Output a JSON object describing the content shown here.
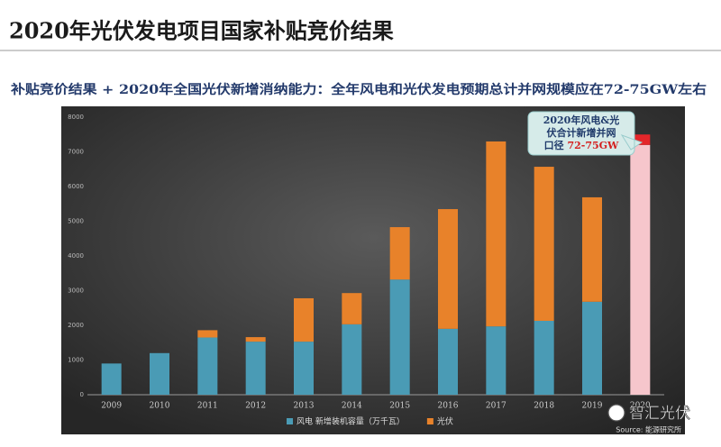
{
  "header": {
    "title": "2020年光伏发电项目国家补贴竞价结果",
    "subtitle": "补贴竞价结果 + 2020年全国光伏新增消纳能力：全年风电和光伏发电预期总计并网规模应在72-75GW左右"
  },
  "chart_data": {
    "type": "stacked_bar",
    "categories": [
      "2009",
      "2010",
      "2011",
      "2012",
      "2013",
      "2014",
      "2015",
      "2016",
      "2017",
      "2018",
      "2019",
      "2020"
    ],
    "series": [
      {
        "name": "风电 新增装机容量（万千瓦）",
        "color": "#4a9bb5",
        "values": [
          900,
          1200,
          1650,
          1530,
          1530,
          2030,
          3320,
          1900,
          1970,
          2130,
          2680,
          null
        ]
      },
      {
        "name": "光伏",
        "color": "#e8822a",
        "values": [
          null,
          null,
          210,
          130,
          1250,
          900,
          1510,
          3450,
          5330,
          4440,
          3010,
          null
        ]
      }
    ],
    "extra_series": [
      {
        "color": "#f6c6cc",
        "values": [
          null,
          null,
          null,
          null,
          null,
          null,
          null,
          null,
          null,
          null,
          null,
          7200
        ]
      },
      {
        "color": "#e4262a",
        "values": [
          null,
          null,
          null,
          null,
          null,
          null,
          null,
          null,
          null,
          null,
          null,
          300
        ]
      }
    ],
    "ylim": [
      0,
      8000
    ],
    "yticks": [
      0,
      1000,
      2000,
      3000,
      4000,
      5000,
      6000,
      7000,
      8000
    ],
    "grid": false,
    "annotation": {
      "lines": [
        "2020年风电&光",
        "伏合计新增并网",
        "口径"
      ],
      "highlight": "72-75GW"
    },
    "source": "Source: 能源研究所"
  },
  "watermark": "智汇光伏"
}
